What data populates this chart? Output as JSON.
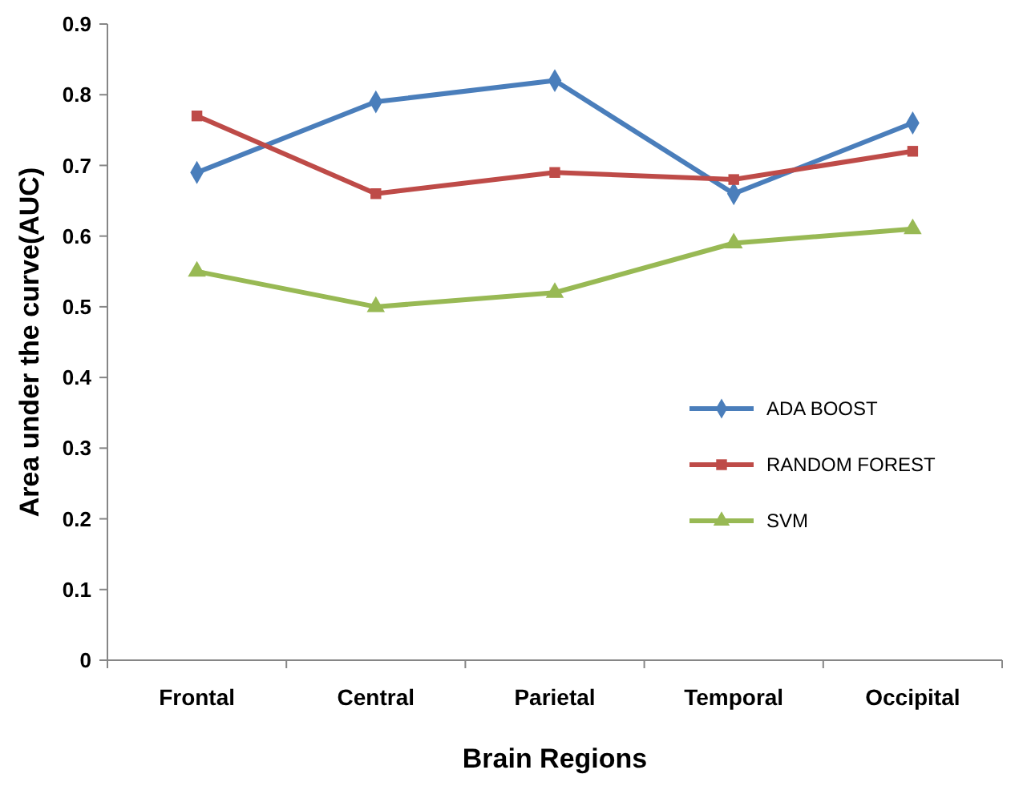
{
  "chart_data": {
    "type": "line",
    "xlabel": "Brain Regions",
    "ylabel": "Area under the curve(AUC)",
    "categories": [
      "Frontal",
      "Central",
      "Parietal",
      "Temporal",
      "Occipital"
    ],
    "series": [
      {
        "name": "ADA BOOST",
        "color": "#4a7ebb",
        "marker": "diamond",
        "values": [
          0.69,
          0.79,
          0.82,
          0.66,
          0.76
        ]
      },
      {
        "name": "RANDOM FOREST",
        "color": "#be4b48",
        "marker": "square",
        "values": [
          0.77,
          0.66,
          0.69,
          0.68,
          0.72
        ]
      },
      {
        "name": "SVM",
        "color": "#98b954",
        "marker": "triangle",
        "values": [
          0.55,
          0.5,
          0.52,
          0.59,
          0.61
        ]
      }
    ],
    "ylim": [
      0,
      0.9
    ],
    "yticks": [
      0,
      0.1,
      0.2,
      0.3,
      0.4,
      0.5,
      0.6,
      0.7,
      0.8,
      0.9
    ],
    "grid": false,
    "legend": "right",
    "line_style": "solid"
  }
}
